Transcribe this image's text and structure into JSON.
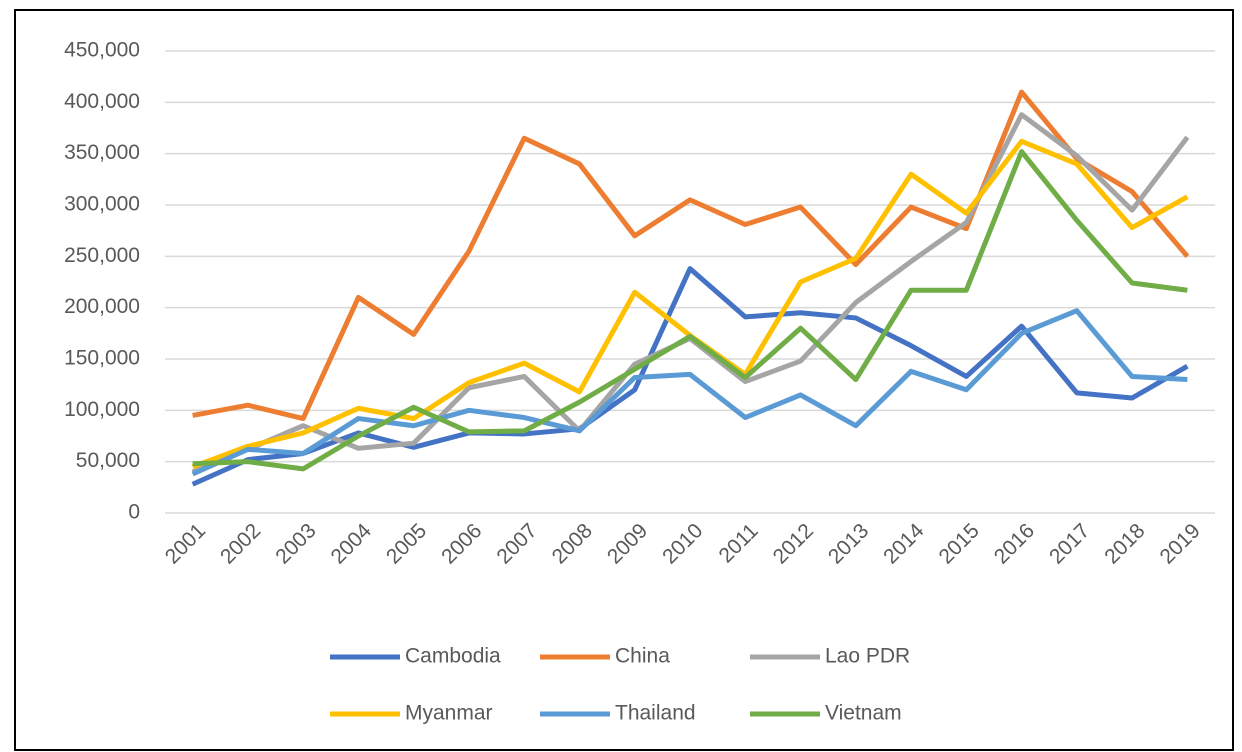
{
  "chart_data": {
    "type": "line",
    "x": [
      "2001",
      "2002",
      "2003",
      "2004",
      "2005",
      "2006",
      "2007",
      "2008",
      "2009",
      "2010",
      "2011",
      "2012",
      "2013",
      "2014",
      "2015",
      "2016",
      "2017",
      "2018",
      "2019"
    ],
    "series": [
      {
        "name": "Cambodia",
        "color": "#4472c4",
        "values": [
          28000,
          52000,
          58000,
          78000,
          64000,
          78000,
          77000,
          82000,
          120000,
          238000,
          191000,
          195000,
          190000,
          163000,
          133000,
          182000,
          117000,
          112000,
          143000
        ]
      },
      {
        "name": "China",
        "color": "#ed7d31",
        "values": [
          95000,
          105000,
          92000,
          210000,
          174000,
          255000,
          365000,
          340000,
          270000,
          305000,
          281000,
          298000,
          242000,
          298000,
          277000,
          410000,
          345000,
          313000,
          250000
        ]
      },
      {
        "name": "Lao PDR",
        "color": "#a5a5a5",
        "values": [
          40000,
          62000,
          85000,
          63000,
          68000,
          122000,
          133000,
          80000,
          145000,
          170000,
          128000,
          148000,
          205000,
          245000,
          283000,
          388000,
          348000,
          295000,
          366000
        ]
      },
      {
        "name": "Myanmar",
        "color": "#ffc000",
        "values": [
          45000,
          65000,
          78000,
          102000,
          92000,
          127000,
          146000,
          118000,
          215000,
          173000,
          135000,
          225000,
          248000,
          330000,
          292000,
          362000,
          340000,
          278000,
          308000
        ]
      },
      {
        "name": "Thailand",
        "color": "#5b9bd5",
        "values": [
          38000,
          62000,
          58000,
          92000,
          85000,
          100000,
          93000,
          80000,
          132000,
          135000,
          93000,
          115000,
          85000,
          138000,
          120000,
          175000,
          197000,
          133000,
          130000
        ]
      },
      {
        "name": "Vietnam",
        "color": "#70ad47",
        "values": [
          48000,
          50000,
          43000,
          75000,
          103000,
          79000,
          80000,
          108000,
          140000,
          172000,
          132000,
          180000,
          130000,
          217000,
          217000,
          352000,
          285000,
          224000,
          217000
        ]
      }
    ],
    "ylim": [
      0,
      450000
    ],
    "yticks": [
      0,
      {
        "value": 50000,
        "label": "50,000"
      },
      {
        "value": 100000,
        "label": "100,000"
      },
      {
        "value": 150000,
        "label": "150,000"
      },
      {
        "value": 200000,
        "label": "200,000"
      },
      {
        "value": 250000,
        "label": "250,000"
      },
      {
        "value": 300000,
        "label": "300,000"
      },
      {
        "value": 350000,
        "label": "350,000"
      },
      {
        "value": 400000,
        "label": "400,000"
      },
      {
        "value": 450000,
        "label": "450,000"
      }
    ],
    "grid": true,
    "legend": "bottom"
  }
}
